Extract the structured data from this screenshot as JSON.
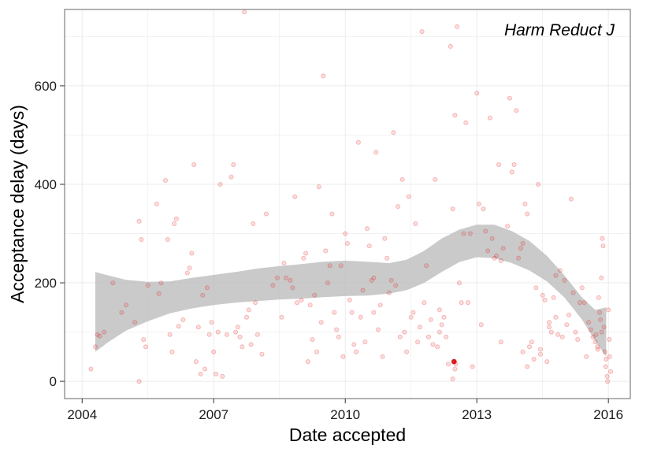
{
  "chart_data": {
    "type": "scatter",
    "panel_label": "Harm Reduct J",
    "xlabel": "Date accepted",
    "ylabel": "Acceptance delay (days)",
    "x_ticks": [
      {
        "value": 2004,
        "label": "2004"
      },
      {
        "value": 2007,
        "label": "2007"
      },
      {
        "value": 2010,
        "label": "2010"
      },
      {
        "value": 2013,
        "label": "2013"
      },
      {
        "value": 2016,
        "label": "2016"
      }
    ],
    "y_ticks": [
      {
        "value": 0,
        "label": "0"
      },
      {
        "value": 200,
        "label": "200"
      },
      {
        "value": 400,
        "label": "400"
      },
      {
        "value": 600,
        "label": "600"
      }
    ],
    "xlim": [
      2003.6,
      2016.5
    ],
    "ylim": [
      -35,
      755
    ],
    "grid": true,
    "colors": {
      "points": "#e41a1c",
      "band": "#bdbdbd",
      "panel_border": "#7f7f7f",
      "grid": "#ebebeb"
    },
    "highlight_point": {
      "x": 2012.48,
      "y": 40
    },
    "smooth_band": [
      {
        "x": 2004.3,
        "lo": 60,
        "hi": 222
      },
      {
        "x": 2004.6,
        "lo": 80,
        "hi": 215
      },
      {
        "x": 2005.0,
        "lo": 103,
        "hi": 206
      },
      {
        "x": 2005.5,
        "lo": 122,
        "hi": 202
      },
      {
        "x": 2006.0,
        "lo": 138,
        "hi": 203
      },
      {
        "x": 2006.5,
        "lo": 148,
        "hi": 210
      },
      {
        "x": 2007.0,
        "lo": 155,
        "hi": 216
      },
      {
        "x": 2007.5,
        "lo": 160,
        "hi": 222
      },
      {
        "x": 2008.0,
        "lo": 163,
        "hi": 229
      },
      {
        "x": 2008.5,
        "lo": 166,
        "hi": 234
      },
      {
        "x": 2009.0,
        "lo": 168,
        "hi": 238
      },
      {
        "x": 2009.5,
        "lo": 171,
        "hi": 243
      },
      {
        "x": 2010.0,
        "lo": 173,
        "hi": 245
      },
      {
        "x": 2010.5,
        "lo": 174,
        "hi": 243
      },
      {
        "x": 2011.0,
        "lo": 178,
        "hi": 240
      },
      {
        "x": 2011.4,
        "lo": 185,
        "hi": 247
      },
      {
        "x": 2011.8,
        "lo": 200,
        "hi": 265
      },
      {
        "x": 2012.2,
        "lo": 222,
        "hi": 290
      },
      {
        "x": 2012.6,
        "lo": 242,
        "hi": 308
      },
      {
        "x": 2013.0,
        "lo": 252,
        "hi": 318
      },
      {
        "x": 2013.4,
        "lo": 250,
        "hi": 318
      },
      {
        "x": 2013.8,
        "lo": 240,
        "hi": 305
      },
      {
        "x": 2014.2,
        "lo": 225,
        "hi": 285
      },
      {
        "x": 2014.6,
        "lo": 203,
        "hi": 255
      },
      {
        "x": 2015.0,
        "lo": 170,
        "hi": 215
      },
      {
        "x": 2015.4,
        "lo": 125,
        "hi": 170
      },
      {
        "x": 2015.7,
        "lo": 82,
        "hi": 145
      },
      {
        "x": 2015.95,
        "lo": 50,
        "hi": 150
      }
    ],
    "points": [
      [
        2004.2,
        25
      ],
      [
        2004.3,
        70
      ],
      [
        2004.35,
        95
      ],
      [
        2004.4,
        92
      ],
      [
        2004.5,
        100
      ],
      [
        2004.7,
        200
      ],
      [
        2004.9,
        140
      ],
      [
        2005.0,
        155
      ],
      [
        2005.2,
        120
      ],
      [
        2005.3,
        325
      ],
      [
        2005.35,
        288
      ],
      [
        2005.4,
        85
      ],
      [
        2005.45,
        70
      ],
      [
        2005.5,
        195
      ],
      [
        2005.3,
        0
      ],
      [
        2005.7,
        360
      ],
      [
        2005.75,
        178
      ],
      [
        2005.8,
        200
      ],
      [
        2005.9,
        408
      ],
      [
        2005.95,
        288
      ],
      [
        2006.0,
        95
      ],
      [
        2006.05,
        60
      ],
      [
        2006.1,
        320
      ],
      [
        2006.15,
        330
      ],
      [
        2006.2,
        112
      ],
      [
        2006.3,
        125
      ],
      [
        2006.4,
        220
      ],
      [
        2006.45,
        230
      ],
      [
        2006.5,
        260
      ],
      [
        2006.55,
        440
      ],
      [
        2006.6,
        40
      ],
      [
        2006.65,
        110
      ],
      [
        2006.7,
        15
      ],
      [
        2006.75,
        175
      ],
      [
        2006.8,
        25
      ],
      [
        2006.85,
        190
      ],
      [
        2006.9,
        95
      ],
      [
        2006.95,
        120
      ],
      [
        2007.0,
        60
      ],
      [
        2007.05,
        15
      ],
      [
        2007.1,
        100
      ],
      [
        2007.15,
        400
      ],
      [
        2007.2,
        10
      ],
      [
        2007.3,
        95
      ],
      [
        2007.4,
        415
      ],
      [
        2007.45,
        440
      ],
      [
        2007.5,
        100
      ],
      [
        2007.55,
        110
      ],
      [
        2007.6,
        90
      ],
      [
        2007.65,
        70
      ],
      [
        2007.7,
        750
      ],
      [
        2007.75,
        130
      ],
      [
        2007.8,
        145
      ],
      [
        2007.85,
        75
      ],
      [
        2007.9,
        320
      ],
      [
        2007.95,
        160
      ],
      [
        2008.0,
        95
      ],
      [
        2008.1,
        55
      ],
      [
        2008.2,
        340
      ],
      [
        2008.35,
        195
      ],
      [
        2008.45,
        210
      ],
      [
        2008.55,
        130
      ],
      [
        2008.6,
        240
      ],
      [
        2008.65,
        210
      ],
      [
        2008.75,
        205
      ],
      [
        2008.8,
        190
      ],
      [
        2008.85,
        375
      ],
      [
        2008.9,
        160
      ],
      [
        2009.0,
        165
      ],
      [
        2009.05,
        250
      ],
      [
        2009.1,
        260
      ],
      [
        2009.15,
        40
      ],
      [
        2009.2,
        155
      ],
      [
        2009.25,
        85
      ],
      [
        2009.3,
        175
      ],
      [
        2009.35,
        60
      ],
      [
        2009.4,
        395
      ],
      [
        2009.45,
        120
      ],
      [
        2009.5,
        620
      ],
      [
        2009.55,
        265
      ],
      [
        2009.6,
        200
      ],
      [
        2009.65,
        235
      ],
      [
        2009.7,
        340
      ],
      [
        2009.75,
        140
      ],
      [
        2009.8,
        105
      ],
      [
        2009.85,
        90
      ],
      [
        2009.9,
        235
      ],
      [
        2009.95,
        50
      ],
      [
        2010.0,
        300
      ],
      [
        2010.05,
        280
      ],
      [
        2010.1,
        165
      ],
      [
        2010.15,
        140
      ],
      [
        2010.2,
        75
      ],
      [
        2010.25,
        60
      ],
      [
        2010.3,
        485
      ],
      [
        2010.35,
        130
      ],
      [
        2010.4,
        185
      ],
      [
        2010.45,
        80
      ],
      [
        2010.5,
        310
      ],
      [
        2010.55,
        275
      ],
      [
        2010.6,
        205
      ],
      [
        2010.65,
        140
      ],
      [
        2010.7,
        465
      ],
      [
        2010.75,
        105
      ],
      [
        2010.8,
        155
      ],
      [
        2010.85,
        50
      ],
      [
        2010.9,
        290
      ],
      [
        2010.95,
        250
      ],
      [
        2011.0,
        180
      ],
      [
        2011.05,
        205
      ],
      [
        2011.1,
        505
      ],
      [
        2011.15,
        195
      ],
      [
        2011.2,
        355
      ],
      [
        2011.25,
        90
      ],
      [
        2011.3,
        410
      ],
      [
        2011.35,
        100
      ],
      [
        2011.4,
        60
      ],
      [
        2011.45,
        375
      ],
      [
        2011.5,
        130
      ],
      [
        2011.55,
        140
      ],
      [
        2011.6,
        320
      ],
      [
        2011.65,
        80
      ],
      [
        2011.7,
        110
      ],
      [
        2011.75,
        710
      ],
      [
        2011.8,
        160
      ],
      [
        2011.85,
        235
      ],
      [
        2011.9,
        90
      ],
      [
        2011.95,
        125
      ],
      [
        2012.0,
        75
      ],
      [
        2012.05,
        410
      ],
      [
        2012.1,
        70
      ],
      [
        2012.15,
        100
      ],
      [
        2012.2,
        115
      ],
      [
        2012.25,
        130
      ],
      [
        2012.3,
        90
      ],
      [
        2012.35,
        35
      ],
      [
        2012.4,
        680
      ],
      [
        2012.45,
        350
      ],
      [
        2012.5,
        540
      ],
      [
        2012.55,
        720
      ],
      [
        2012.6,
        200
      ],
      [
        2012.65,
        160
      ],
      [
        2012.7,
        300
      ],
      [
        2012.75,
        525
      ],
      [
        2012.8,
        160
      ],
      [
        2012.85,
        300
      ],
      [
        2012.9,
        30
      ],
      [
        2013.0,
        585
      ],
      [
        2013.05,
        360
      ],
      [
        2013.1,
        115
      ],
      [
        2013.15,
        350
      ],
      [
        2013.2,
        305
      ],
      [
        2013.25,
        265
      ],
      [
        2013.3,
        535
      ],
      [
        2013.35,
        290
      ],
      [
        2013.4,
        250
      ],
      [
        2013.45,
        255
      ],
      [
        2013.5,
        440
      ],
      [
        2013.55,
        245
      ],
      [
        2013.6,
        270
      ],
      [
        2013.7,
        315
      ],
      [
        2013.75,
        575
      ],
      [
        2013.8,
        425
      ],
      [
        2013.85,
        440
      ],
      [
        2013.9,
        550
      ],
      [
        2013.95,
        250
      ],
      [
        2014.0,
        270
      ],
      [
        2014.05,
        280
      ],
      [
        2014.1,
        360
      ],
      [
        2014.15,
        340
      ],
      [
        2014.2,
        70
      ],
      [
        2014.25,
        80
      ],
      [
        2014.3,
        45
      ],
      [
        2014.35,
        190
      ],
      [
        2014.4,
        400
      ],
      [
        2014.45,
        65
      ],
      [
        2014.5,
        175
      ],
      [
        2014.55,
        165
      ],
      [
        2014.6,
        40
      ],
      [
        2014.65,
        110
      ],
      [
        2014.7,
        100
      ],
      [
        2014.75,
        170
      ],
      [
        2014.8,
        130
      ],
      [
        2014.85,
        95
      ],
      [
        2014.9,
        225
      ],
      [
        2014.95,
        90
      ],
      [
        2015.0,
        205
      ],
      [
        2015.05,
        115
      ],
      [
        2015.1,
        135
      ],
      [
        2015.15,
        370
      ],
      [
        2015.2,
        180
      ],
      [
        2015.25,
        100
      ],
      [
        2015.3,
        85
      ],
      [
        2015.35,
        160
      ],
      [
        2015.4,
        190
      ],
      [
        2015.45,
        160
      ],
      [
        2015.5,
        50
      ],
      [
        2015.55,
        120
      ],
      [
        2015.6,
        105
      ],
      [
        2015.65,
        90
      ],
      [
        2015.7,
        80
      ],
      [
        2015.75,
        70
      ],
      [
        2015.78,
        170
      ],
      [
        2015.8,
        140
      ],
      [
        2015.82,
        125
      ],
      [
        2015.84,
        210
      ],
      [
        2015.86,
        290
      ],
      [
        2015.88,
        275
      ],
      [
        2015.9,
        110
      ],
      [
        2015.92,
        60
      ],
      [
        2015.94,
        30
      ],
      [
        2015.95,
        45
      ],
      [
        2015.97,
        10
      ],
      [
        2015.98,
        0
      ],
      [
        2016.0,
        145
      ],
      [
        2016.02,
        85
      ],
      [
        2016.03,
        50
      ],
      [
        2016.05,
        20
      ],
      [
        2015.85,
        100
      ],
      [
        2015.76,
        65
      ],
      [
        2015.72,
        95
      ],
      [
        2012.5,
        25
      ],
      [
        2012.45,
        5
      ],
      [
        2012.52,
        35
      ],
      [
        2014.05,
        60
      ],
      [
        2014.15,
        30
      ],
      [
        2014.45,
        55
      ],
      [
        2014.65,
        120
      ],
      [
        2013.55,
        80
      ],
      [
        2014.8,
        215
      ],
      [
        2012.15,
        145
      ],
      [
        2010.65,
        210
      ]
    ]
  }
}
